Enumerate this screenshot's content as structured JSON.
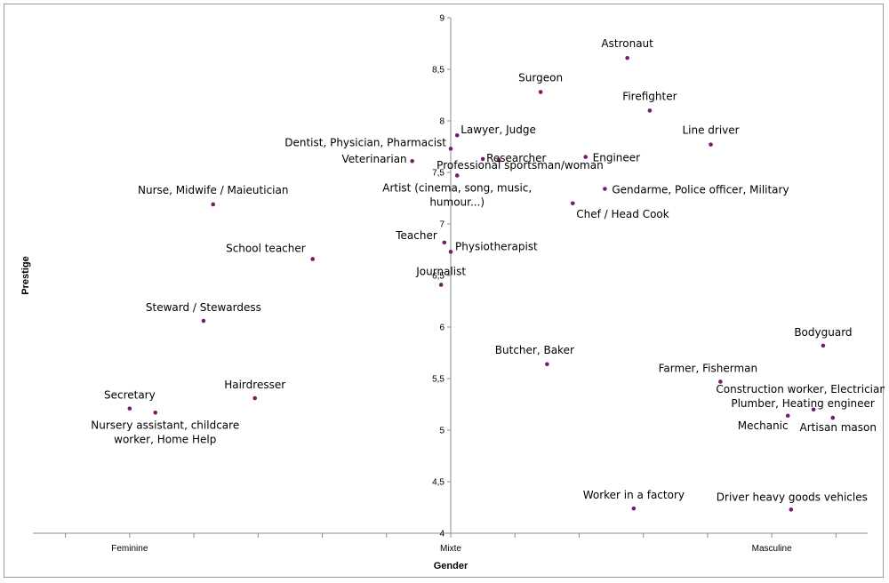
{
  "chart_data": {
    "type": "scatter",
    "xlabel": "Gender",
    "ylabel": "Prestige",
    "x_categories": [
      "Feminine",
      "Mixte",
      "Masculine"
    ],
    "xlim": [
      -1.3,
      1.3
    ],
    "ylim": [
      4,
      9
    ],
    "y_ticks": [
      "4",
      "4,5",
      "5",
      "5,5",
      "6",
      "6,5",
      "7",
      "7,5",
      "8",
      "8,5",
      "9"
    ],
    "grid": false,
    "legend": "none",
    "colors": {
      "marker": "#7a1a6e",
      "axis": "#8c8c8c"
    },
    "points": [
      {
        "label": "Astronaut",
        "x": 0.55,
        "y": 8.61
      },
      {
        "label": "Surgeon",
        "x": 0.28,
        "y": 8.28
      },
      {
        "label": "Firefighter",
        "x": 0.62,
        "y": 8.1
      },
      {
        "label": "Line driver",
        "x": 0.81,
        "y": 7.77
      },
      {
        "label": "Lawyer, Judge",
        "x": 0.02,
        "y": 7.86
      },
      {
        "label": "Dentist, Physician, Pharmacist",
        "x": 0.0,
        "y": 7.73
      },
      {
        "label": "Researcher",
        "x": 0.1,
        "y": 7.63
      },
      {
        "label": "Veterinarian",
        "x": -0.12,
        "y": 7.61
      },
      {
        "label": "Professional sportsman/woman",
        "x": 0.15,
        "y": 7.62
      },
      {
        "label": "Engineer",
        "x": 0.42,
        "y": 7.65
      },
      {
        "label": "Artist (cinema, song, music, humour...)",
        "x": 0.02,
        "y": 7.47
      },
      {
        "label": "Gendarme, Police officer, Military",
        "x": 0.48,
        "y": 7.34
      },
      {
        "label": "Chef / Head Cook",
        "x": 0.38,
        "y": 7.2
      },
      {
        "label": "Nurse, Midwife / Maieutician",
        "x": -0.74,
        "y": 7.19
      },
      {
        "label": "Teacher",
        "x": -0.02,
        "y": 6.82
      },
      {
        "label": "Physiotherapist",
        "x": 0.0,
        "y": 6.73
      },
      {
        "label": "School teacher",
        "x": -0.43,
        "y": 6.66
      },
      {
        "label": "Journalist",
        "x": -0.03,
        "y": 6.41
      },
      {
        "label": "Steward / Stewardess",
        "x": -0.77,
        "y": 6.06
      },
      {
        "label": "Butcher, Baker",
        "x": 0.3,
        "y": 5.64
      },
      {
        "label": "Bodyguard",
        "x": 1.16,
        "y": 5.82
      },
      {
        "label": "Farmer, Fisherman",
        "x": 0.84,
        "y": 5.47
      },
      {
        "label": "Construction worker, Electrician, Plumber, Heating engineer",
        "x": 1.13,
        "y": 5.2
      },
      {
        "label": "Mechanic",
        "x": 1.05,
        "y": 5.14
      },
      {
        "label": "Artisan mason",
        "x": 1.19,
        "y": 5.12
      },
      {
        "label": "Hairdresser",
        "x": -0.61,
        "y": 5.31
      },
      {
        "label": "Secretary",
        "x": -1.0,
        "y": 5.21
      },
      {
        "label": "Nursery assistant, childcare worker, Home Help",
        "x": -0.92,
        "y": 5.17
      },
      {
        "label": "Worker in a factory",
        "x": 0.57,
        "y": 4.24
      },
      {
        "label": "Driver heavy goods vehicles",
        "x": 1.06,
        "y": 4.23
      }
    ]
  }
}
